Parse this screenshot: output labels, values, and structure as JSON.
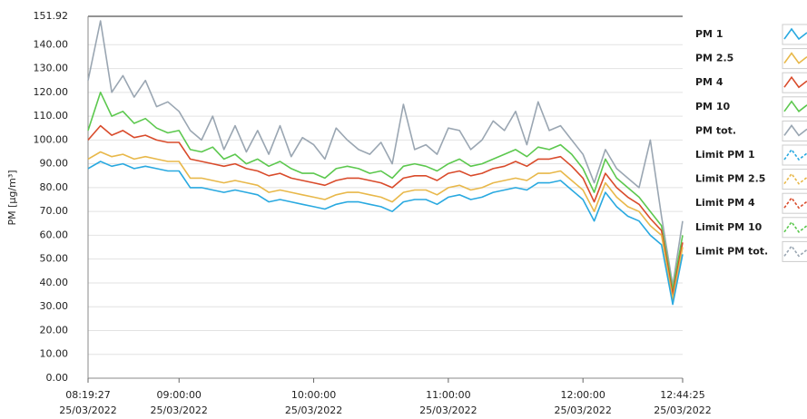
{
  "chart_data": {
    "type": "line",
    "ylabel": "PM [µg/m³]",
    "x": [
      "08:19:27",
      "08:25:00",
      "08:30:00",
      "08:35:00",
      "08:40:00",
      "08:45:00",
      "08:50:00",
      "08:55:00",
      "09:00:00",
      "09:05:00",
      "09:10:00",
      "09:15:00",
      "09:20:00",
      "09:25:00",
      "09:30:00",
      "09:35:00",
      "09:40:00",
      "09:45:00",
      "09:50:00",
      "09:55:00",
      "10:00:00",
      "10:05:00",
      "10:10:00",
      "10:15:00",
      "10:20:00",
      "10:25:00",
      "10:30:00",
      "10:35:00",
      "10:40:00",
      "10:45:00",
      "10:50:00",
      "10:55:00",
      "11:00:00",
      "11:05:00",
      "11:10:00",
      "11:15:00",
      "11:20:00",
      "11:25:00",
      "11:30:00",
      "11:35:00",
      "11:40:00",
      "11:45:00",
      "11:50:00",
      "11:55:00",
      "12:00:00",
      "12:05:00",
      "12:10:00",
      "12:15:00",
      "12:20:00",
      "12:25:00",
      "12:30:00",
      "12:35:00",
      "12:40:00",
      "12:44:25"
    ],
    "xlim": [
      "08:19:27",
      "12:44:25"
    ],
    "xticks": [
      "08:19:27",
      "09:00:00",
      "10:00:00",
      "11:00:00",
      "12:00:00",
      "12:44:25"
    ],
    "xtick_dates": [
      "25/03/2022",
      "25/03/2022",
      "25/03/2022",
      "25/03/2022",
      "25/03/2022",
      "25/03/2022"
    ],
    "ylim": [
      0,
      151.92
    ],
    "yticks": [
      {
        "value": 0,
        "label": "0.00"
      },
      {
        "value": 10,
        "label": "10.00"
      },
      {
        "value": 20,
        "label": "20.00"
      },
      {
        "value": 30,
        "label": "30.00"
      },
      {
        "value": 40,
        "label": "40.00"
      },
      {
        "value": 50,
        "label": "50.00"
      },
      {
        "value": 60,
        "label": "60.00"
      },
      {
        "value": 70,
        "label": "70.00"
      },
      {
        "value": 80,
        "label": "80.00"
      },
      {
        "value": 90,
        "label": "90.00"
      },
      {
        "value": 100,
        "label": "100.00"
      },
      {
        "value": 110,
        "label": "110.00"
      },
      {
        "value": 120,
        "label": "120.00"
      },
      {
        "value": 130,
        "label": "130.00"
      },
      {
        "value": 140,
        "label": "140.00"
      },
      151.92
    ],
    "grid": true,
    "series": [
      {
        "name": "PM 1",
        "color": "#29a9e0",
        "values": [
          88,
          91,
          89,
          90,
          88,
          89,
          88,
          87,
          87,
          80,
          80,
          79,
          78,
          79,
          78,
          77,
          74,
          75,
          74,
          73,
          72,
          71,
          73,
          74,
          74,
          73,
          72,
          70,
          74,
          75,
          75,
          73,
          76,
          77,
          75,
          76,
          78,
          79,
          80,
          79,
          82,
          82,
          83,
          79,
          75,
          66,
          78,
          72,
          68,
          66,
          60,
          56,
          31,
          52
        ]
      },
      {
        "name": "PM 2.5",
        "color": "#e8b84a",
        "values": [
          92,
          95,
          93,
          94,
          92,
          93,
          92,
          91,
          91,
          84,
          84,
          83,
          82,
          83,
          82,
          81,
          78,
          79,
          78,
          77,
          76,
          75,
          77,
          78,
          78,
          77,
          76,
          74,
          78,
          79,
          79,
          77,
          80,
          81,
          79,
          80,
          82,
          83,
          84,
          83,
          86,
          86,
          87,
          83,
          79,
          70,
          82,
          76,
          72,
          70,
          64,
          60,
          33,
          55
        ]
      },
      {
        "name": "PM 4",
        "color": "#d94b2b",
        "values": [
          100,
          106,
          102,
          104,
          101,
          102,
          100,
          99,
          99,
          92,
          91,
          90,
          89,
          90,
          88,
          87,
          85,
          86,
          84,
          83,
          82,
          81,
          83,
          84,
          84,
          83,
          82,
          80,
          84,
          85,
          85,
          83,
          86,
          87,
          85,
          86,
          88,
          89,
          91,
          89,
          92,
          92,
          93,
          89,
          84,
          74,
          86,
          80,
          76,
          73,
          67,
          62,
          35,
          57
        ]
      },
      {
        "name": "PM 10",
        "color": "#5cc84e",
        "values": [
          104,
          120,
          110,
          112,
          107,
          109,
          105,
          103,
          104,
          96,
          95,
          97,
          92,
          94,
          90,
          92,
          89,
          91,
          88,
          86,
          86,
          84,
          88,
          89,
          88,
          86,
          87,
          84,
          89,
          90,
          89,
          87,
          90,
          92,
          89,
          90,
          92,
          94,
          96,
          93,
          97,
          96,
          98,
          94,
          88,
          78,
          92,
          84,
          80,
          76,
          70,
          64,
          37,
          60
        ]
      },
      {
        "name": "PM tot.",
        "color": "#9aa6b2",
        "values": [
          125,
          150,
          120,
          127,
          118,
          125,
          114,
          116,
          112,
          104,
          100,
          110,
          96,
          106,
          95,
          104,
          94,
          106,
          93,
          101,
          98,
          92,
          105,
          100,
          96,
          94,
          99,
          90,
          115,
          96,
          98,
          94,
          105,
          104,
          96,
          100,
          108,
          104,
          112,
          98,
          116,
          104,
          106,
          100,
          94,
          82,
          96,
          88,
          84,
          80,
          100,
          68,
          39,
          66
        ]
      }
    ],
    "limits": [
      {
        "name": "Limit PM 1",
        "color": "#29a9e0"
      },
      {
        "name": "Limit PM 2.5",
        "color": "#e8b84a"
      },
      {
        "name": "Limit PM 4",
        "color": "#d94b2b"
      },
      {
        "name": "Limit PM 10",
        "color": "#5cc84e"
      },
      {
        "name": "Limit PM tot.",
        "color": "#9aa6b2"
      }
    ]
  }
}
